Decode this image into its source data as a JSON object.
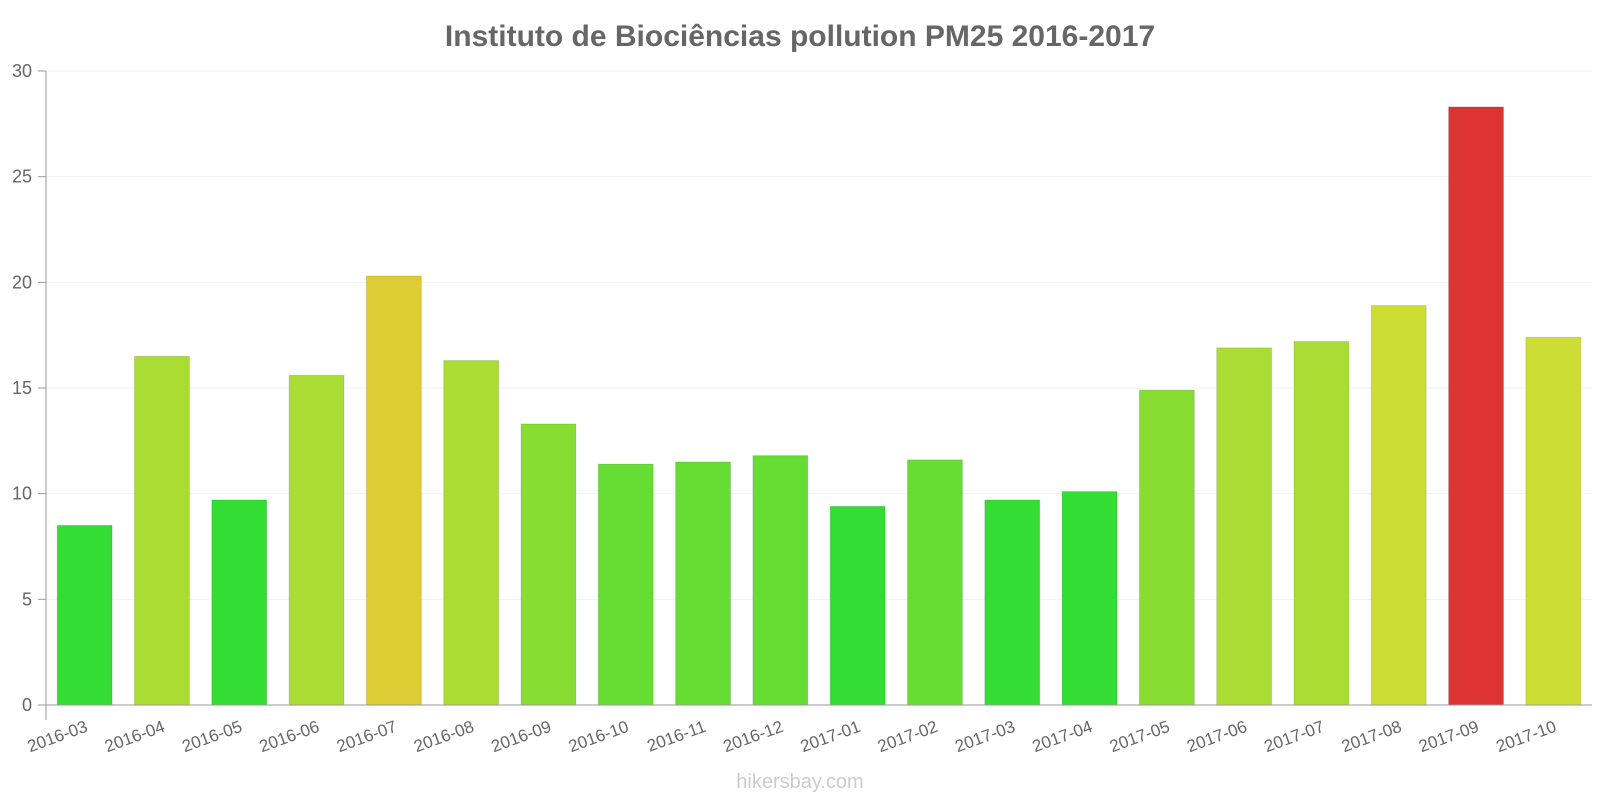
{
  "chart_data": {
    "type": "bar",
    "title": "Instituto de Biociências pollution PM25 2016-2017",
    "categories": [
      "2016-03",
      "2016-04",
      "2016-05",
      "2016-06",
      "2016-07",
      "2016-08",
      "2016-09",
      "2016-10",
      "2016-11",
      "2016-12",
      "2017-01",
      "2017-02",
      "2017-03",
      "2017-04",
      "2017-05",
      "2017-06",
      "2017-07",
      "2017-08",
      "2017-09",
      "2017-10"
    ],
    "values": [
      8.5,
      16.5,
      9.7,
      15.6,
      20.3,
      16.3,
      13.3,
      11.4,
      11.5,
      11.8,
      9.4,
      11.6,
      9.7,
      10.1,
      14.9,
      16.9,
      17.2,
      18.9,
      28.3,
      17.4
    ],
    "colors": [
      "#33dd33",
      "#aadd33",
      "#33dd33",
      "#aadd33",
      "#ddcc33",
      "#aadd33",
      "#88dd33",
      "#66dd33",
      "#66dd33",
      "#66dd33",
      "#33dd33",
      "#66dd33",
      "#33dd33",
      "#33dd33",
      "#88dd33",
      "#aadd33",
      "#aadd33",
      "#ccdd33",
      "#dd3333",
      "#ccdd33"
    ],
    "yticks": [
      "0",
      "5",
      "10",
      "15",
      "20",
      "25",
      "30"
    ],
    "ylim": [
      0,
      30
    ],
    "xlabel": "",
    "ylabel": "",
    "grid": true,
    "legend": "none",
    "watermark": "hikersbay.com"
  }
}
